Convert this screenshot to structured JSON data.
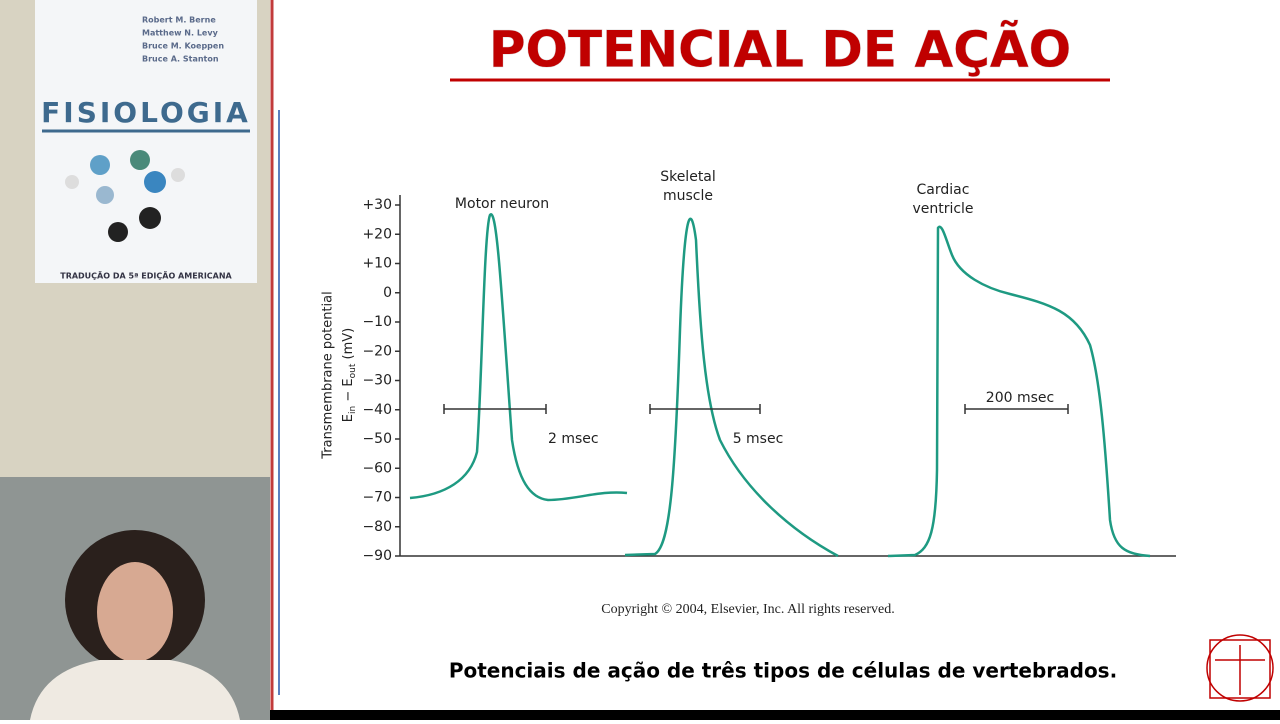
{
  "book": {
    "authors": [
      "Robert M. Berne",
      "Matthew N. Levy",
      "Bruce M. Koeppen",
      "Bruce A. Stanton"
    ],
    "title": "FISIOLOGIA",
    "edition": "TRADUÇÃO DA 5ª EDIÇÃO AMERICANA"
  },
  "slide": {
    "title": "POTENCIAL DE AÇÃO",
    "figure": {
      "ylabel": "Transmembrane potential",
      "ylabel2": [
        "E",
        "in",
        " − E",
        "out",
        " (mV)"
      ],
      "ylim": [
        -90,
        30
      ],
      "yticks": [
        {
          "value": 30,
          "label": "+30"
        },
        {
          "value": 20,
          "label": "+20"
        },
        {
          "value": 10,
          "label": "+10"
        },
        0,
        {
          "value": -10,
          "label": "−10"
        },
        {
          "value": -20,
          "label": "−20"
        },
        {
          "value": -30,
          "label": "−30"
        },
        {
          "value": -40,
          "label": "−40"
        },
        {
          "value": -50,
          "label": "−50"
        },
        {
          "value": -60,
          "label": "−60"
        },
        {
          "value": -70,
          "label": "−70"
        },
        {
          "value": -80,
          "label": "−80"
        },
        {
          "value": -90,
          "label": "−90"
        }
      ],
      "panels": [
        {
          "label": [
            "Motor neuron"
          ],
          "scale": "2 msec"
        },
        {
          "label": [
            "Skeletal",
            "muscle"
          ],
          "scale": "5 msec"
        },
        {
          "label": [
            "Cardiac",
            "ventricle"
          ],
          "scale": "200 msec"
        }
      ]
    },
    "copyright": "Copyright © 2004, Elsevier, Inc. All rights reserved.",
    "caption": "Potenciais de ação de três tipos de células de vertebrados."
  }
}
